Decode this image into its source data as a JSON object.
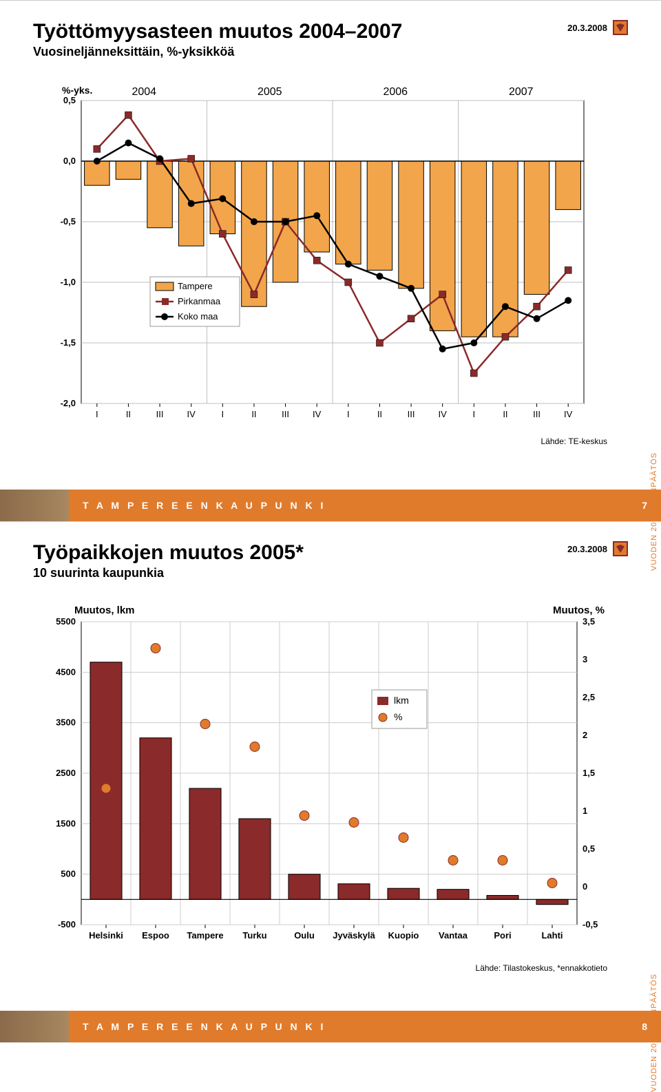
{
  "slide1": {
    "date": "20.3.2008",
    "title": "Työttömyysasteen muutos 2004–2007",
    "subtitle": "Vuosineljänneksittäin, %-yksikköä",
    "footer_text": "T A M P E R E E N   K A U P U N K I",
    "page_num": "7",
    "side_text": "VUODEN 2007 TILINPÄÄTÖS",
    "source": "Lähde: TE-keskus",
    "chart": {
      "type": "combined-bar-line",
      "yaxis_title": "%-yks.",
      "year_labels": [
        "2004",
        "2005",
        "2006",
        "2007"
      ],
      "quarter_labels": [
        "I",
        "II",
        "III",
        "IV",
        "I",
        "II",
        "III",
        "IV",
        "I",
        "II",
        "III",
        "IV",
        "I",
        "II",
        "III",
        "IV"
      ],
      "ylim": [
        -2.0,
        0.5
      ],
      "yticks": [
        0.5,
        0.0,
        -0.5,
        -1.0,
        -1.5,
        -2.0
      ],
      "ytick_labels": [
        "0,5",
        "0,0",
        "-0,5",
        "-1,0",
        "-1,5",
        "-2,0"
      ],
      "grid_color": "#bfbfbf",
      "bar_color": "#f2a54a",
      "bar_border": "#000000",
      "background_color": "#ffffff",
      "legend": {
        "box_border": "#999999",
        "items": [
          {
            "name": "Tampere",
            "type": "bar",
            "color": "#f2a54a"
          },
          {
            "name": "Pirkanmaa",
            "type": "line",
            "color": "#8a2a2a",
            "marker": "square"
          },
          {
            "name": "Koko maa",
            "type": "line",
            "color": "#000000",
            "marker": "circle"
          }
        ]
      },
      "tampere_bars": [
        -0.2,
        -0.15,
        -0.55,
        -0.7,
        -0.6,
        -1.2,
        -1.0,
        -0.75,
        -0.85,
        -0.9,
        -1.05,
        -1.4,
        -1.45,
        -1.45,
        -1.1,
        -0.4
      ],
      "pirkanmaa_line": [
        0.1,
        0.38,
        0.0,
        0.02,
        -0.6,
        -1.1,
        -0.5,
        -0.82,
        -1.0,
        -1.5,
        -1.3,
        -1.1,
        -1.75,
        -1.45,
        -1.2,
        -0.9
      ],
      "kokomaa_line": [
        0.0,
        0.15,
        0.02,
        -0.35,
        -0.31,
        -0.5,
        -0.5,
        -0.45,
        -0.85,
        -0.95,
        -1.05,
        -1.55,
        -1.5,
        -1.2,
        -1.3,
        -1.15
      ]
    }
  },
  "slide2": {
    "date": "20.3.2008",
    "title": "Työpaikkojen muutos 2005*",
    "subtitle": "10 suurinta kaupunkia",
    "footer_text": "T A M P E R E E N   K A U P U N K I",
    "page_num": "8",
    "side_text": "VUODEN 2007 TILINPÄÄTÖS",
    "source": "Lähde: Tilastokeskus, *ennakkotieto",
    "chart": {
      "type": "bar+scatter-dual-axis",
      "y1_title": "Muutos, lkm",
      "y2_title": "Muutos, %",
      "categories": [
        "Helsinki",
        "Espoo",
        "Tampere",
        "Turku",
        "Oulu",
        "Jyväskylä",
        "Kuopio",
        "Vantaa",
        "Pori",
        "Lahti"
      ],
      "y1lim": [
        -500,
        5500
      ],
      "y1ticks": [
        5500,
        4500,
        3500,
        2500,
        1500,
        500,
        -500
      ],
      "y1tick_labels": [
        "5500",
        "4500",
        "3500",
        "2500",
        "1500",
        "500",
        "-500"
      ],
      "y2lim": [
        -0.5,
        3.5
      ],
      "y2ticks": [
        3.5,
        3,
        2.5,
        2,
        1.5,
        1,
        0.5,
        0,
        -0.5
      ],
      "y2tick_labels": [
        "3,5",
        "3",
        "2,5",
        "2",
        "1,5",
        "1",
        "0,5",
        "0",
        "-0,5"
      ],
      "grid_color": "#cccccc",
      "bar_color": "#8a2a2a",
      "bar_border": "#000000",
      "marker_color": "#e07b2c",
      "marker_border": "#8a2a2a",
      "background_color": "#ffffff",
      "legend": {
        "box_border": "#999999",
        "items": [
          {
            "name": "lkm",
            "type": "bar",
            "color": "#8a2a2a"
          },
          {
            "name": "%",
            "type": "marker",
            "color": "#e07b2c"
          }
        ]
      },
      "lkm_bars": [
        4700,
        3200,
        2200,
        1600,
        500,
        310,
        220,
        200,
        80,
        -100
      ],
      "pct_points": [
        1.3,
        3.15,
        2.15,
        1.85,
        0.94,
        0.85,
        0.65,
        0.35,
        0.35,
        0.05
      ]
    }
  }
}
